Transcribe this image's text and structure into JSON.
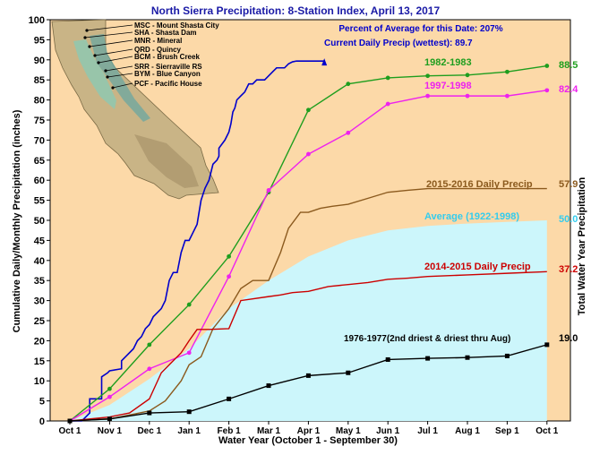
{
  "chart_data": {
    "type": "line",
    "title": "North Sierra Precipitation: 8-Station Index, April 13, 2017",
    "xlabel": "Water Year (October 1 - September 30)",
    "ylabel": "Cumulative Daily/Monthly Precipitation (inches)",
    "ylabel_right": "Total Water Year Precipitation",
    "percent_note": "Percent of Average for this Date: 207%",
    "ylim": [
      0,
      100
    ],
    "yticks": [
      0,
      5,
      10,
      15,
      20,
      25,
      30,
      35,
      40,
      45,
      50,
      55,
      60,
      65,
      70,
      75,
      80,
      85,
      90,
      95,
      100
    ],
    "xticks": [
      "Oct 1",
      "Nov 1",
      "Dec 1",
      "Jan 1",
      "Feb 1",
      "Mar 1",
      "Apr 1",
      "May 1",
      "Jun 1",
      "Jul 1",
      "Aug 1",
      "Sep 1",
      "Oct 1"
    ],
    "grid": false,
    "colors": {
      "plot_bg": "#fcd9a8",
      "average_fill": "#ccf6fb",
      "current": "#0000cc",
      "y1982": "#1e9e1e",
      "y1997": "#ee22ee",
      "y2015": "#8b5a1e",
      "y2014": "#cc0000",
      "y1976": "#000000",
      "average_label": "#33ccee",
      "title": "#1a1aa6"
    },
    "series": [
      {
        "name": "Current Daily Precip (wettest): 89.7",
        "key": "current",
        "style": "step",
        "end_value": "89.7",
        "x": [
          0,
          0.3,
          0.5,
          0.5,
          0.8,
          0.8,
          0.95,
          1.0,
          1.0,
          1.3,
          1.3,
          1.6,
          1.7,
          1.8,
          1.9,
          2.0,
          2.1,
          2.2,
          2.3,
          2.4,
          2.5,
          2.6,
          2.7,
          2.8,
          2.9,
          3.0,
          3.1,
          3.2,
          3.3,
          3.4,
          3.5,
          3.6,
          3.7,
          3.75,
          3.75,
          3.9,
          4.0,
          4.05,
          4.1,
          4.15,
          4.2,
          4.3,
          4.4,
          4.5,
          4.6,
          4.7,
          4.8,
          4.9,
          5.0,
          5.1,
          5.2,
          5.3,
          5.4,
          5.5,
          5.6,
          5.7,
          5.8,
          5.9,
          6.0,
          6.1,
          6.2,
          6.3,
          6.4
        ],
        "values": [
          0,
          0,
          2,
          5.5,
          5.5,
          11,
          12,
          12.5,
          12.5,
          13,
          15,
          18,
          20,
          21,
          23,
          24,
          26,
          27,
          28,
          30,
          35,
          37,
          37,
          42,
          45,
          45,
          47,
          49,
          55,
          58,
          60,
          64,
          65,
          66,
          68,
          70,
          72,
          74,
          77,
          78,
          80,
          81,
          82,
          84,
          84,
          85,
          85,
          85,
          86,
          87,
          88,
          88,
          88,
          89,
          89.5,
          89.7,
          89.7,
          89.7,
          89.7,
          89.7,
          89.7,
          89.7,
          89.7
        ]
      },
      {
        "name": "1982-1983",
        "key": "y1982",
        "style": "line",
        "end_value": "88.5",
        "x": [
          0,
          1,
          2,
          3,
          4,
          5,
          6,
          7,
          8,
          9,
          10,
          11,
          12
        ],
        "values": [
          0,
          8,
          19,
          29,
          41,
          57,
          77.5,
          84,
          85.5,
          86,
          86.2,
          87,
          88.5
        ]
      },
      {
        "name": "1997-1998",
        "key": "y1997",
        "style": "line",
        "end_value": "82.4",
        "x": [
          0,
          1,
          2,
          3,
          4,
          5,
          6,
          7,
          8,
          9,
          10,
          11,
          12
        ],
        "values": [
          0,
          6,
          13,
          17,
          36,
          57.5,
          66.5,
          71.8,
          79,
          81,
          81,
          81,
          82.4
        ]
      },
      {
        "name": "2015-2016 Daily Precip",
        "key": "y2015",
        "style": "step",
        "end_value": "57.9",
        "x": [
          0,
          1,
          1.5,
          2,
          2.4,
          2.8,
          3,
          3.3,
          3.6,
          4,
          4.3,
          4.6,
          5,
          5.3,
          5.5,
          5.8,
          6,
          6.3,
          6.6,
          7,
          7.5,
          8,
          8.5,
          9,
          10,
          11,
          12
        ],
        "values": [
          0,
          0.5,
          1.5,
          2.5,
          5,
          10,
          14,
          16,
          23,
          28,
          33,
          35,
          35,
          42,
          48,
          52,
          52,
          53,
          53.5,
          54,
          55.5,
          57,
          57.5,
          57.9,
          57.9,
          57.9,
          57.9
        ]
      },
      {
        "name": "Average (1922-1998)",
        "key": "average",
        "style": "area",
        "end_value": "50.0",
        "x": [
          0,
          1,
          2,
          3,
          4,
          5,
          6,
          7,
          8,
          9,
          10,
          11,
          12
        ],
        "values": [
          0,
          4,
          10.5,
          18,
          28,
          35,
          41,
          45,
          47.5,
          48.6,
          49.2,
          49.6,
          50
        ]
      },
      {
        "name": "2014-2015 Daily Precip",
        "key": "y2014",
        "style": "step",
        "end_value": "37.2",
        "x": [
          0,
          1,
          1.5,
          2,
          2.3,
          2.5,
          2.8,
          3,
          3.2,
          3.5,
          4,
          4.3,
          4.5,
          5,
          5.3,
          5.6,
          6,
          6.5,
          7,
          7.5,
          8,
          8.5,
          9,
          10,
          11,
          12
        ],
        "values": [
          0,
          1,
          2,
          5.5,
          12,
          14,
          17,
          20,
          22.8,
          22.8,
          23,
          30,
          30.3,
          31,
          31.4,
          32,
          32.3,
          33.5,
          34,
          34.5,
          35.3,
          35.6,
          36,
          36.4,
          36.8,
          37.2
        ]
      },
      {
        "name": "1976-1977(2nd driest & driest thru Aug)",
        "key": "y1976",
        "style": "line",
        "end_value": "19.0",
        "x": [
          0,
          1,
          2,
          3,
          4,
          5,
          6,
          7,
          8,
          9,
          10,
          11,
          12
        ],
        "values": [
          0,
          0.5,
          2,
          2.3,
          5.5,
          8.8,
          11.3,
          12,
          15.3,
          15.6,
          15.8,
          16.2,
          19
        ]
      }
    ]
  },
  "map": {
    "stations": [
      "MSC - Mount Shasta City",
      "SHA - Shasta Dam",
      "MNR - Mineral",
      "QRD - Quincy",
      "BCM - Brush Creek",
      "SRR - Sierraville RS",
      "BYM - Blue Canyon",
      "PCF - Pacific House"
    ]
  }
}
